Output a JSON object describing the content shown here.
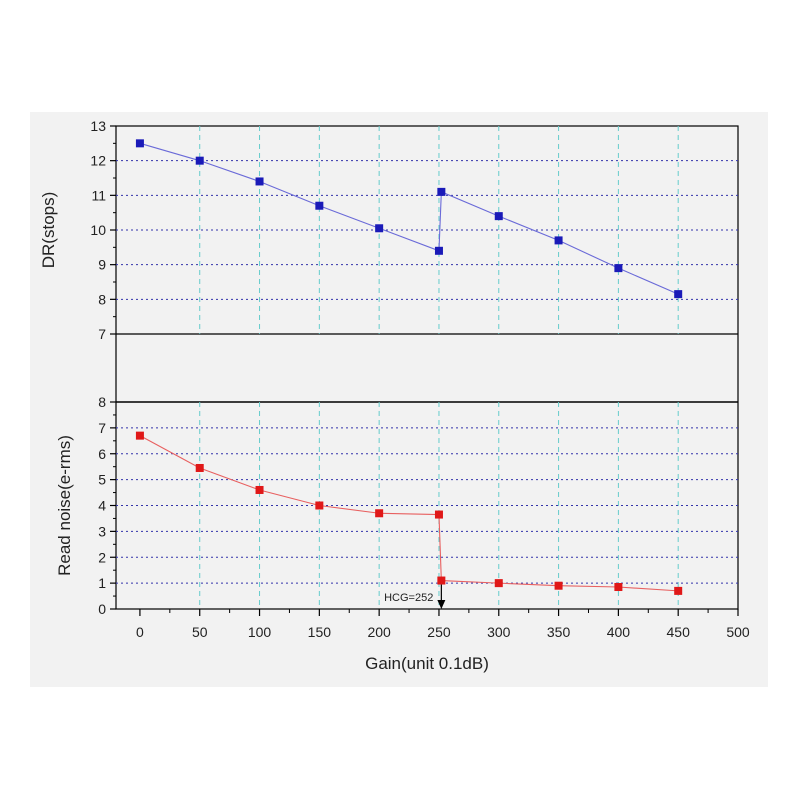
{
  "chart_data": [
    {
      "type": "line",
      "ylabel": "DR(stops)",
      "ylim": [
        7,
        13
      ],
      "yticks": [
        7,
        8,
        9,
        10,
        11,
        12,
        13
      ],
      "grid": true,
      "series": [
        {
          "color": "#1a1ab8",
          "line_color": "#6a6ad8",
          "marker": "square",
          "x": [
            0,
            50,
            100,
            150,
            200,
            250,
            252,
            300,
            350,
            400,
            450
          ],
          "y": [
            12.5,
            12.0,
            11.4,
            10.7,
            10.05,
            9.4,
            11.1,
            10.4,
            9.7,
            8.9,
            8.15
          ]
        }
      ]
    },
    {
      "type": "line",
      "ylabel": "Read noise(e-rms)",
      "xlabel": "Gain(unit 0.1dB)",
      "xlim": [
        -20,
        500
      ],
      "xticks": [
        0,
        50,
        100,
        150,
        200,
        250,
        300,
        350,
        400,
        450,
        500
      ],
      "ylim": [
        0,
        8
      ],
      "yticks": [
        0,
        1,
        2,
        3,
        4,
        5,
        6,
        7,
        8
      ],
      "grid": true,
      "series": [
        {
          "color": "#e01818",
          "line_color": "#e86060",
          "marker": "square",
          "x": [
            0,
            50,
            100,
            150,
            200,
            250,
            252,
            300,
            350,
            400,
            450
          ],
          "y": [
            6.7,
            5.45,
            4.6,
            4.0,
            3.7,
            3.65,
            1.1,
            1.0,
            0.9,
            0.85,
            0.7
          ]
        }
      ],
      "annotation": {
        "text": "HCG=252",
        "x": 252,
        "y": 1.1,
        "arrow_color": "#000000"
      }
    }
  ],
  "colors": {
    "grid_x": "#66cccc",
    "grid_y": "#3333aa",
    "axis": "#000000",
    "panel": "#f2f2f2"
  }
}
